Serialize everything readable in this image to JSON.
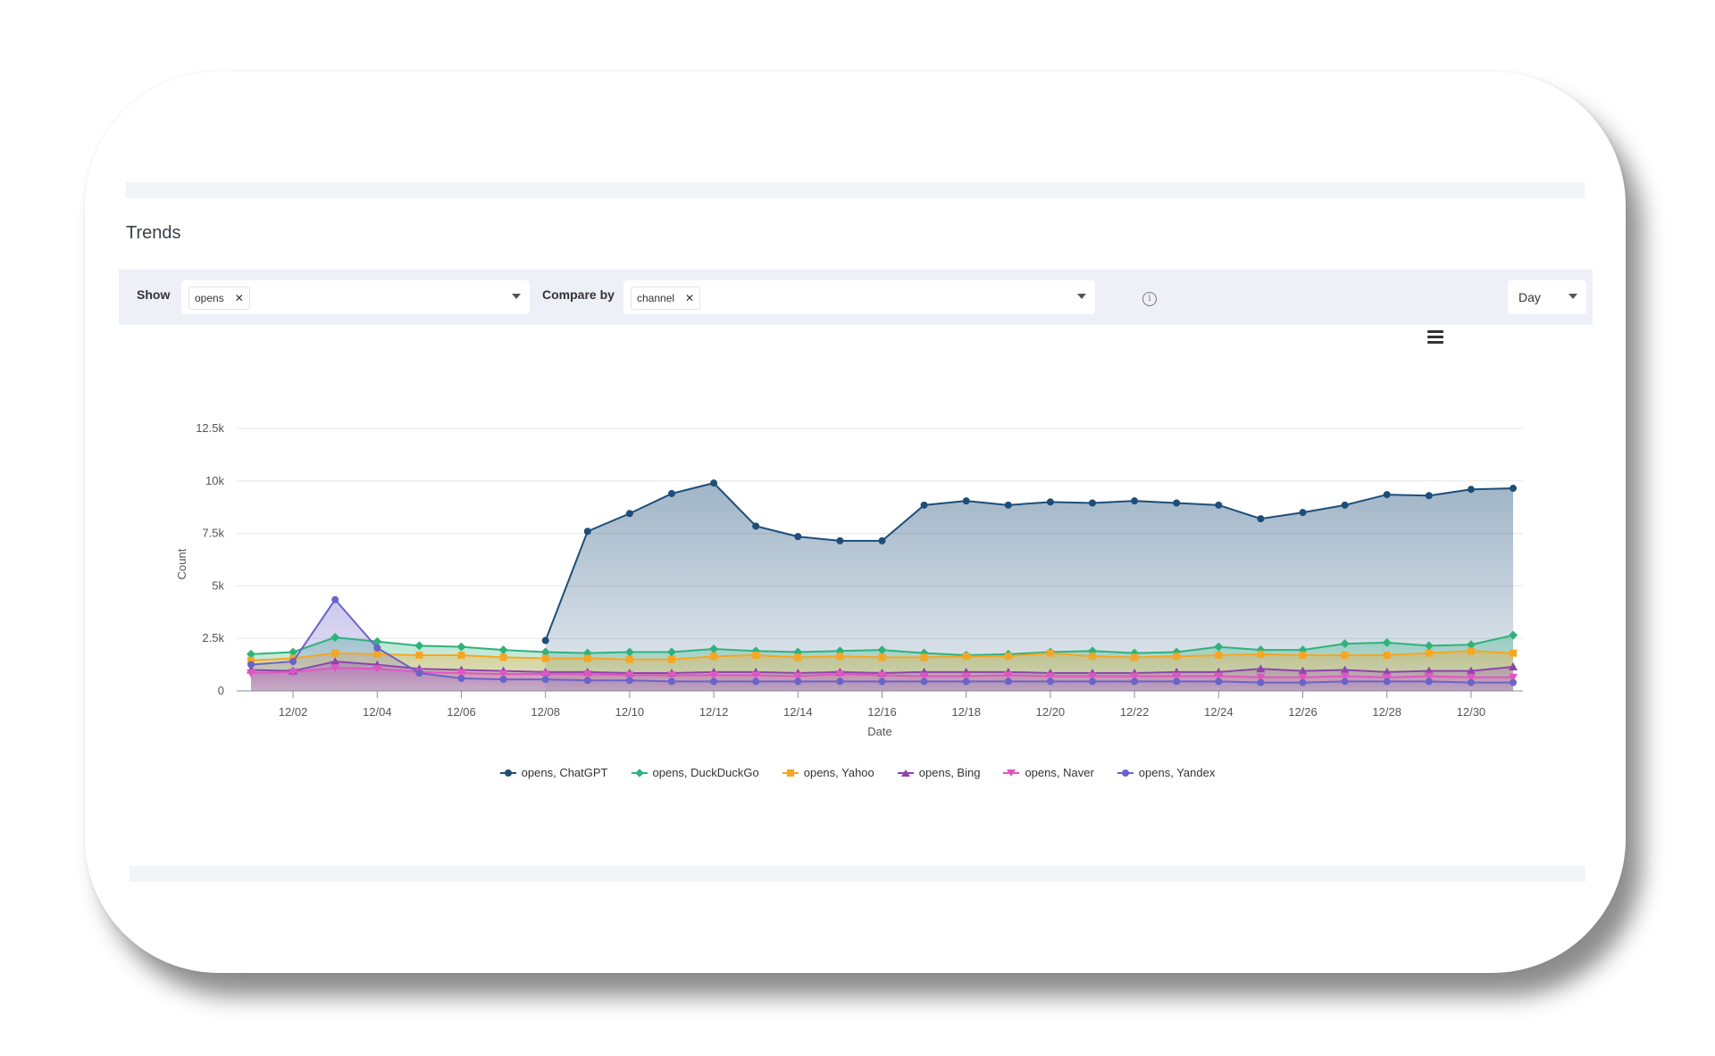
{
  "page": {
    "title": "Trends"
  },
  "controls": {
    "show_label": "Show",
    "show_value": "opens",
    "compare_label": "Compare by",
    "compare_value": "channel",
    "interval_value": "Day",
    "info_glyph": "i"
  },
  "icons": {
    "menu": "hamburger-icon",
    "remove": "close-icon",
    "dropdown": "chevron-down-icon",
    "info": "info-icon"
  },
  "chart_data": {
    "type": "area",
    "xlabel": "Date",
    "ylabel": "Count",
    "ylim": [
      0,
      12500
    ],
    "yticks": [
      0,
      2500,
      5000,
      7500,
      10000,
      12500
    ],
    "ytick_labels": [
      "0",
      "2.5k",
      "5k",
      "7.5k",
      "10k",
      "12.5k"
    ],
    "x": [
      "12/01",
      "12/02",
      "12/03",
      "12/04",
      "12/05",
      "12/06",
      "12/07",
      "12/08",
      "12/09",
      "12/10",
      "12/11",
      "12/12",
      "12/13",
      "12/14",
      "12/15",
      "12/16",
      "12/17",
      "12/18",
      "12/19",
      "12/20",
      "12/21",
      "12/22",
      "12/23",
      "12/24",
      "12/25",
      "12/26",
      "12/27",
      "12/28",
      "12/29",
      "12/30",
      "12/31"
    ],
    "xtick_labels": [
      "12/02",
      "12/04",
      "12/06",
      "12/08",
      "12/10",
      "12/12",
      "12/14",
      "12/16",
      "12/18",
      "12/20",
      "12/22",
      "12/24",
      "12/26",
      "12/28",
      "12/30"
    ],
    "grid": true,
    "legend_position": "bottom-center",
    "series": [
      {
        "name": "opens, ChatGPT",
        "color": "#1d4e79",
        "marker": "circle",
        "values": [
          null,
          null,
          null,
          null,
          null,
          null,
          null,
          2400,
          7600,
          8450,
          9400,
          9900,
          7850,
          7350,
          7150,
          7150,
          8850,
          9050,
          8850,
          9000,
          8950,
          9050,
          8950,
          8850,
          8200,
          8500,
          8850,
          9350,
          9300,
          9600,
          9650
        ]
      },
      {
        "name": "opens, DuckDuckGo",
        "color": "#2fb27c",
        "marker": "diamond",
        "values": [
          1750,
          1850,
          2550,
          2350,
          2150,
          2100,
          1950,
          1850,
          1800,
          1850,
          1850,
          2000,
          1900,
          1850,
          1900,
          1950,
          1800,
          1700,
          1750,
          1850,
          1900,
          1800,
          1850,
          2100,
          1950,
          1950,
          2250,
          2300,
          2150,
          2200,
          2650
        ]
      },
      {
        "name": "opens, Yahoo",
        "color": "#f5a623",
        "marker": "square",
        "values": [
          1450,
          1550,
          1800,
          1750,
          1700,
          1700,
          1600,
          1550,
          1550,
          1500,
          1500,
          1650,
          1700,
          1600,
          1650,
          1600,
          1600,
          1650,
          1650,
          1800,
          1650,
          1600,
          1650,
          1700,
          1750,
          1700,
          1700,
          1700,
          1800,
          1900,
          1800
        ]
      },
      {
        "name": "opens, Bing",
        "color": "#8e44ad",
        "marker": "triangle",
        "values": [
          1000,
          950,
          1400,
          1250,
          1050,
          1000,
          950,
          900,
          900,
          850,
          850,
          900,
          900,
          850,
          900,
          850,
          900,
          900,
          900,
          850,
          850,
          850,
          900,
          900,
          1050,
          950,
          1000,
          900,
          950,
          950,
          1150
        ]
      },
      {
        "name": "opens, Naver",
        "color": "#e056c1",
        "marker": "triangle-down",
        "values": [
          850,
          900,
          1100,
          1050,
          900,
          850,
          800,
          800,
          800,
          750,
          750,
          750,
          750,
          700,
          800,
          750,
          700,
          700,
          750,
          700,
          700,
          700,
          700,
          700,
          650,
          650,
          700,
          650,
          700,
          650,
          650
        ]
      },
      {
        "name": "opens, Yandex",
        "color": "#6a63c9",
        "marker": "circle",
        "values": [
          1250,
          1400,
          4350,
          2050,
          850,
          600,
          550,
          550,
          500,
          500,
          450,
          450,
          450,
          450,
          450,
          450,
          450,
          450,
          450,
          450,
          450,
          450,
          450,
          450,
          400,
          400,
          450,
          450,
          450,
          400,
          400
        ]
      }
    ]
  }
}
